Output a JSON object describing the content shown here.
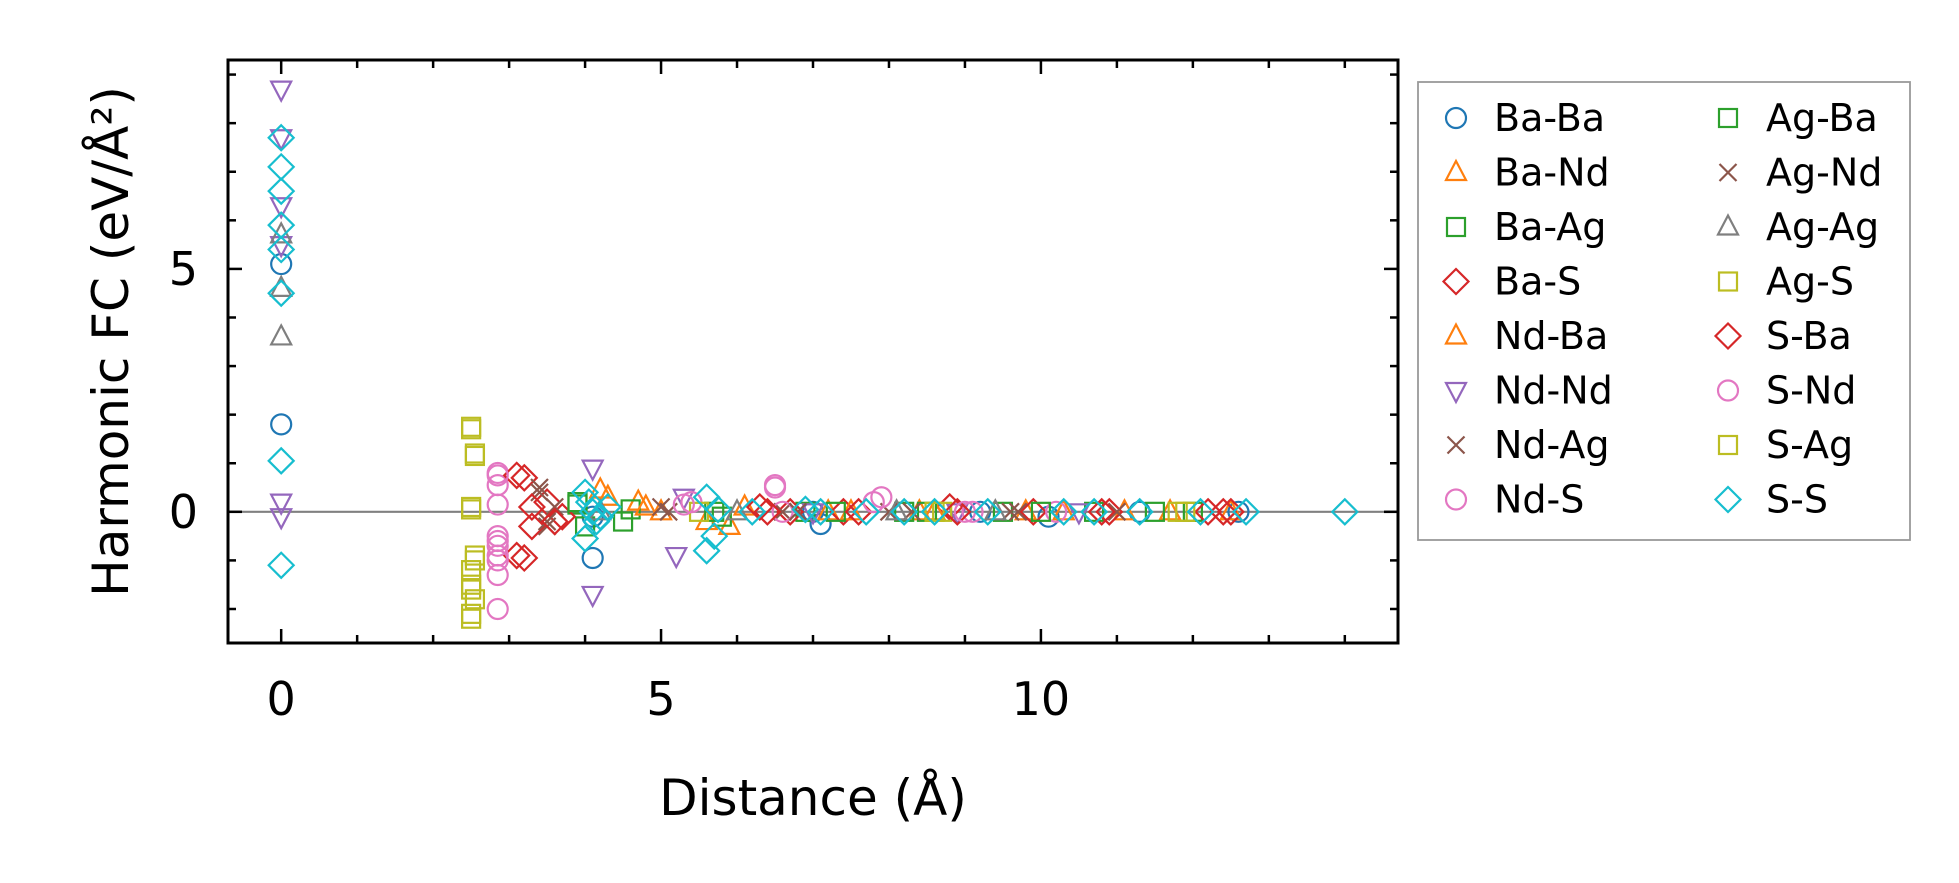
{
  "chart_data": {
    "type": "scatter",
    "title": "",
    "xlabel": "Distance (Å)",
    "ylabel": "Harmonic FC (eV/Å²)",
    "xlim": [
      -0.7,
      14.7
    ],
    "ylim": [
      -2.7,
      9.3
    ],
    "x_ticks": [
      0,
      5,
      10
    ],
    "y_ticks": [
      0,
      5
    ],
    "x_tick_labels": [
      "0",
      "5",
      "10"
    ],
    "y_tick_labels": [
      "0",
      "5"
    ],
    "grid": false,
    "zero_line": true,
    "legend_position": "outside-right",
    "legend_columns": 2,
    "series": [
      {
        "name": "Ba-Ba",
        "marker": "circle",
        "color": "#1f77b4",
        "points": [
          [
            0,
            5.1
          ],
          [
            0,
            1.8
          ],
          [
            4.1,
            -0.95
          ],
          [
            4.1,
            -0.1
          ],
          [
            7.1,
            -0.25
          ],
          [
            7.0,
            0
          ],
          [
            9.2,
            0
          ],
          [
            10.1,
            -0.1
          ],
          [
            11.3,
            0
          ],
          [
            12.6,
            0
          ]
        ]
      },
      {
        "name": "Ba-Nd",
        "marker": "triangle-up",
        "color": "#ff7f0e",
        "points": [
          [
            4.2,
            0.45
          ],
          [
            4.7,
            0.2
          ],
          [
            5.0,
            0
          ],
          [
            5.9,
            -0.3
          ],
          [
            6.1,
            0.1
          ],
          [
            7.2,
            0
          ],
          [
            8.4,
            0
          ],
          [
            9.8,
            0
          ],
          [
            11.1,
            0
          ],
          [
            12.5,
            0
          ]
        ]
      },
      {
        "name": "Ba-Ag",
        "marker": "square",
        "color": "#2ca02c",
        "points": [
          [
            3.9,
            0.15
          ],
          [
            4.0,
            -0.3
          ],
          [
            4.6,
            0.05
          ],
          [
            5.8,
            -0.1
          ],
          [
            6.9,
            0
          ],
          [
            8.2,
            0
          ],
          [
            9.5,
            0
          ],
          [
            10.7,
            0
          ],
          [
            12.0,
            0
          ]
        ]
      },
      {
        "name": "Ba-S",
        "marker": "diamond",
        "color": "#d62728",
        "points": [
          [
            3.1,
            -0.9
          ],
          [
            3.2,
            0.7
          ],
          [
            3.3,
            -0.3
          ],
          [
            3.5,
            0.2
          ],
          [
            3.7,
            -0.1
          ],
          [
            6.3,
            0.1
          ],
          [
            6.7,
            0
          ],
          [
            7.4,
            0
          ],
          [
            8.8,
            0.1
          ],
          [
            9.9,
            0
          ],
          [
            10.9,
            0
          ],
          [
            12.2,
            0
          ],
          [
            12.5,
            0
          ]
        ]
      },
      {
        "name": "Nd-Ba",
        "marker": "triangle-up",
        "color": "#ff7f0e",
        "points": [
          [
            4.3,
            0.3
          ],
          [
            4.8,
            0.1
          ],
          [
            5.6,
            -0.2
          ],
          [
            7.5,
            0
          ],
          [
            8.6,
            0
          ],
          [
            10.3,
            0
          ],
          [
            11.7,
            0
          ]
        ]
      },
      {
        "name": "Nd-Nd",
        "marker": "triangle-down",
        "color": "#9467bd",
        "points": [
          [
            0,
            8.7
          ],
          [
            0,
            7.7
          ],
          [
            0,
            6.3
          ],
          [
            0,
            5.5
          ],
          [
            0,
            0.2
          ],
          [
            0,
            -0.1
          ],
          [
            4.1,
            0.9
          ],
          [
            4.1,
            -1.7
          ],
          [
            5.2,
            -0.9
          ],
          [
            5.3,
            0.3
          ],
          [
            7.0,
            0
          ],
          [
            8.9,
            0
          ],
          [
            10.5,
            0
          ]
        ]
      },
      {
        "name": "Nd-Ag",
        "marker": "x",
        "color": "#8c564b",
        "points": [
          [
            3.4,
            0.5
          ],
          [
            3.5,
            -0.2
          ],
          [
            3.6,
            0.1
          ],
          [
            5.1,
            0
          ],
          [
            6.6,
            0
          ],
          [
            8.0,
            0
          ],
          [
            9.6,
            0
          ],
          [
            11.0,
            0
          ]
        ]
      },
      {
        "name": "Nd-S",
        "marker": "circle",
        "color": "#e377c2",
        "points": [
          [
            2.85,
            0.8
          ],
          [
            2.85,
            0.55
          ],
          [
            2.85,
            -0.6
          ],
          [
            2.85,
            -0.9
          ],
          [
            2.85,
            -1.3
          ],
          [
            2.85,
            -2.0
          ],
          [
            2.85,
            0.15
          ],
          [
            5.4,
            0.2
          ],
          [
            6.5,
            0.55
          ],
          [
            6.6,
            0
          ],
          [
            7.9,
            0.3
          ],
          [
            9.1,
            0
          ],
          [
            10.2,
            0
          ]
        ]
      },
      {
        "name": "Ag-Ba",
        "marker": "square",
        "color": "#2ca02c",
        "points": [
          [
            3.9,
            0.2
          ],
          [
            4.5,
            -0.2
          ],
          [
            5.7,
            0
          ],
          [
            7.3,
            0
          ],
          [
            8.5,
            0
          ],
          [
            10.0,
            0
          ],
          [
            11.5,
            0
          ]
        ]
      },
      {
        "name": "Ag-Nd",
        "marker": "x",
        "color": "#8c564b",
        "points": [
          [
            3.4,
            0.4
          ],
          [
            3.5,
            -0.3
          ],
          [
            5.0,
            0.1
          ],
          [
            6.8,
            0
          ],
          [
            8.3,
            0
          ],
          [
            9.7,
            0
          ]
        ]
      },
      {
        "name": "Ag-Ag",
        "marker": "triangle-up",
        "color": "#7f7f7f",
        "points": [
          [
            0,
            4.6
          ],
          [
            0,
            3.6
          ],
          [
            0,
            5.7
          ],
          [
            4.2,
            0
          ],
          [
            6.0,
            0
          ],
          [
            8.1,
            0
          ],
          [
            9.4,
            0
          ]
        ]
      },
      {
        "name": "Ag-S",
        "marker": "square",
        "color": "#bcbd22",
        "points": [
          [
            2.5,
            1.75
          ],
          [
            2.55,
            1.2
          ],
          [
            2.5,
            0.1
          ],
          [
            2.55,
            -0.9
          ],
          [
            2.5,
            -1.2
          ],
          [
            2.5,
            -1.5
          ],
          [
            2.55,
            -1.8
          ],
          [
            2.5,
            -2.2
          ],
          [
            5.5,
            0
          ],
          [
            8.7,
            0
          ],
          [
            11.8,
            0
          ]
        ]
      },
      {
        "name": "S-Ba",
        "marker": "diamond",
        "color": "#d62728",
        "points": [
          [
            3.1,
            0.75
          ],
          [
            3.2,
            -0.95
          ],
          [
            3.3,
            0.1
          ],
          [
            3.6,
            -0.2
          ],
          [
            6.4,
            0
          ],
          [
            7.6,
            0
          ],
          [
            8.9,
            0
          ],
          [
            10.8,
            0
          ],
          [
            12.4,
            0
          ]
        ]
      },
      {
        "name": "S-Nd",
        "marker": "circle",
        "color": "#e377c2",
        "points": [
          [
            2.85,
            0.75
          ],
          [
            2.85,
            -0.7
          ],
          [
            2.85,
            -1.0
          ],
          [
            2.85,
            -0.5
          ],
          [
            5.3,
            0.15
          ],
          [
            6.5,
            0.5
          ],
          [
            7.8,
            0.2
          ],
          [
            9.0,
            0
          ]
        ]
      },
      {
        "name": "S-Ag",
        "marker": "square",
        "color": "#bcbd22",
        "points": [
          [
            2.5,
            1.7
          ],
          [
            2.55,
            1.15
          ],
          [
            2.5,
            0.05
          ],
          [
            2.55,
            -1.0
          ],
          [
            2.5,
            -1.6
          ],
          [
            2.5,
            -2.1
          ],
          [
            8.6,
            0
          ],
          [
            11.9,
            0
          ]
        ]
      },
      {
        "name": "S-S",
        "marker": "diamond",
        "color": "#17becf",
        "points": [
          [
            0,
            7.7
          ],
          [
            0,
            7.1
          ],
          [
            0,
            6.6
          ],
          [
            0,
            5.9
          ],
          [
            0,
            5.4
          ],
          [
            0,
            4.5
          ],
          [
            0,
            1.05
          ],
          [
            0,
            -1.1
          ],
          [
            4.0,
            0.4
          ],
          [
            4.05,
            0.2
          ],
          [
            4.1,
            0
          ],
          [
            4.15,
            -0.2
          ],
          [
            4.0,
            -0.55
          ],
          [
            4.2,
            -0.1
          ],
          [
            4.3,
            0.1
          ],
          [
            5.6,
            0.3
          ],
          [
            5.7,
            -0.5
          ],
          [
            5.6,
            -0.8
          ],
          [
            5.75,
            0.05
          ],
          [
            6.2,
            0
          ],
          [
            6.9,
            0.05
          ],
          [
            7.1,
            0
          ],
          [
            7.7,
            0
          ],
          [
            8.2,
            0
          ],
          [
            8.6,
            0
          ],
          [
            9.3,
            0
          ],
          [
            10.3,
            0
          ],
          [
            10.7,
            0
          ],
          [
            11.3,
            0
          ],
          [
            12.1,
            0
          ],
          [
            12.7,
            0
          ],
          [
            14.0,
            0
          ]
        ]
      }
    ]
  }
}
